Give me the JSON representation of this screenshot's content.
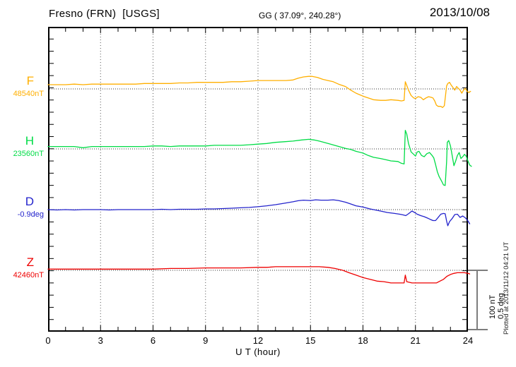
{
  "header": {
    "station_title": "Fresno (FRN)  [USGS]",
    "coordinates": "GG ( 37.09°, 240.28°)",
    "date": "2013/10/08"
  },
  "axis": {
    "x_label": "U T (hour)"
  },
  "channels": [
    {
      "letter": "F",
      "value_label": "48540nT",
      "color": "#FFAF00"
    },
    {
      "letter": "H",
      "value_label": "23560nT",
      "color": "#00DC46"
    },
    {
      "letter": "D",
      "value_label": "-0.9deg",
      "color": "#2323CC"
    },
    {
      "letter": "Z",
      "value_label": "42460nT",
      "color": "#EE0000"
    }
  ],
  "scale_bar": {
    "label_nT": "100 nT",
    "label_deg": "0.5 deg"
  },
  "footer_note": "Plotted at 2013/11/12 04:21 UT",
  "chart_data": {
    "type": "line",
    "title": "Fresno (FRN) [USGS] magnetogram 2013/10/08",
    "xlabel": "U T (hour)",
    "x_range": [
      0,
      24
    ],
    "x_ticks": [
      0,
      3,
      6,
      9,
      12,
      15,
      18,
      21,
      24
    ],
    "grid": "dotted vertical every 3 h, dotted horizontal baseline per channel",
    "scale_reference": {
      "nT_per_bar": 100,
      "deg_per_bar": 0.5
    },
    "series": [
      {
        "name": "F",
        "baseline_value": 48540,
        "unit": "nT",
        "color": "#FFAF00",
        "points": [
          [
            0,
            7
          ],
          [
            0.5,
            7
          ],
          [
            1,
            7
          ],
          [
            1.5,
            8
          ],
          [
            2,
            7
          ],
          [
            2.5,
            8
          ],
          [
            3,
            8
          ],
          [
            3.5,
            8
          ],
          [
            4,
            8
          ],
          [
            4.5,
            8
          ],
          [
            5,
            8
          ],
          [
            5.5,
            9
          ],
          [
            6,
            9
          ],
          [
            6.5,
            9
          ],
          [
            7,
            9
          ],
          [
            7.5,
            10
          ],
          [
            8,
            10
          ],
          [
            8.5,
            11
          ],
          [
            9,
            11
          ],
          [
            9.5,
            11
          ],
          [
            10,
            11
          ],
          [
            10.5,
            12
          ],
          [
            11,
            12
          ],
          [
            11.5,
            13
          ],
          [
            12,
            14
          ],
          [
            12.4,
            14
          ],
          [
            12.8,
            14
          ],
          [
            13.2,
            14
          ],
          [
            13.6,
            14
          ],
          [
            14,
            15
          ],
          [
            14.3,
            18
          ],
          [
            14.6,
            20
          ],
          [
            14.9,
            21
          ],
          [
            15.1,
            21
          ],
          [
            15.4,
            19
          ],
          [
            15.7,
            16
          ],
          [
            16,
            14
          ],
          [
            16.3,
            12
          ],
          [
            16.6,
            8
          ],
          [
            17,
            4
          ],
          [
            17.3,
            -2
          ],
          [
            17.6,
            -7
          ],
          [
            18,
            -12
          ],
          [
            18.3,
            -15
          ],
          [
            18.6,
            -18
          ],
          [
            19,
            -19
          ],
          [
            19.3,
            -19
          ],
          [
            19.6,
            -18
          ],
          [
            20,
            -19
          ],
          [
            20.2,
            -20
          ],
          [
            20.35,
            -19
          ],
          [
            20.42,
            12
          ],
          [
            20.5,
            6
          ],
          [
            20.6,
            -2
          ],
          [
            20.75,
            -11
          ],
          [
            20.9,
            -15
          ],
          [
            21,
            -16
          ],
          [
            21.15,
            -13
          ],
          [
            21.3,
            -14
          ],
          [
            21.45,
            -18
          ],
          [
            21.6,
            -15
          ],
          [
            21.75,
            -13
          ],
          [
            21.9,
            -14
          ],
          [
            22,
            -15
          ],
          [
            22.1,
            -20
          ],
          [
            22.2,
            -27
          ],
          [
            22.3,
            -29
          ],
          [
            22.45,
            -29
          ],
          [
            22.55,
            -31
          ],
          [
            22.65,
            -28
          ],
          [
            22.72,
            -11
          ],
          [
            22.78,
            5
          ],
          [
            22.85,
            9
          ],
          [
            22.95,
            11
          ],
          [
            23.05,
            6
          ],
          [
            23.15,
            2
          ],
          [
            23.25,
            -2
          ],
          [
            23.35,
            4
          ],
          [
            23.45,
            1
          ],
          [
            23.55,
            -2
          ],
          [
            23.65,
            -7
          ],
          [
            23.75,
            -2
          ],
          [
            23.85,
            1
          ],
          [
            23.95,
            -4
          ],
          [
            24.05,
            -6
          ],
          [
            24.15,
            -4
          ]
        ]
      },
      {
        "name": "H",
        "baseline_value": 23560,
        "unit": "nT",
        "color": "#00DC46",
        "points": [
          [
            0,
            4
          ],
          [
            0.5,
            4
          ],
          [
            1,
            4
          ],
          [
            1.5,
            4
          ],
          [
            2,
            2
          ],
          [
            2.5,
            4
          ],
          [
            3,
            4
          ],
          [
            3.5,
            4
          ],
          [
            4,
            4
          ],
          [
            4.5,
            4
          ],
          [
            5,
            4
          ],
          [
            5.5,
            4
          ],
          [
            6,
            5
          ],
          [
            6.5,
            5
          ],
          [
            7,
            4
          ],
          [
            7.5,
            5
          ],
          [
            8,
            5
          ],
          [
            8.5,
            5
          ],
          [
            9,
            5
          ],
          [
            9.5,
            6
          ],
          [
            10,
            6
          ],
          [
            10.5,
            6
          ],
          [
            11,
            6
          ],
          [
            11.5,
            7
          ],
          [
            12,
            8
          ],
          [
            12.5,
            9
          ],
          [
            13,
            11
          ],
          [
            13.5,
            12
          ],
          [
            14,
            13
          ],
          [
            14.5,
            15
          ],
          [
            14.9,
            16
          ],
          [
            15.2,
            15
          ],
          [
            15.5,
            13
          ],
          [
            16,
            9
          ],
          [
            16.5,
            5
          ],
          [
            17,
            1
          ],
          [
            17.3,
            -1
          ],
          [
            17.6,
            -4
          ],
          [
            18,
            -7
          ],
          [
            18.3,
            -11
          ],
          [
            18.6,
            -14
          ],
          [
            19,
            -16
          ],
          [
            19.3,
            -18
          ],
          [
            19.6,
            -20
          ],
          [
            20,
            -21
          ],
          [
            20.2,
            -24
          ],
          [
            20.35,
            -25
          ],
          [
            20.42,
            31
          ],
          [
            20.5,
            25
          ],
          [
            20.6,
            9
          ],
          [
            20.75,
            -5
          ],
          [
            20.9,
            -9
          ],
          [
            21,
            -12
          ],
          [
            21.1,
            -5
          ],
          [
            21.2,
            -4
          ],
          [
            21.35,
            -11
          ],
          [
            21.5,
            -13
          ],
          [
            21.65,
            -8
          ],
          [
            21.8,
            -6
          ],
          [
            21.95,
            -11
          ],
          [
            22.05,
            -15
          ],
          [
            22.15,
            -26
          ],
          [
            22.25,
            -38
          ],
          [
            22.35,
            -46
          ],
          [
            22.5,
            -54
          ],
          [
            22.6,
            -60
          ],
          [
            22.7,
            -61
          ],
          [
            22.78,
            -22
          ],
          [
            22.82,
            11
          ],
          [
            22.9,
            14
          ],
          [
            23,
            5
          ],
          [
            23.1,
            -11
          ],
          [
            23.2,
            -28
          ],
          [
            23.3,
            -20
          ],
          [
            23.4,
            -11
          ],
          [
            23.5,
            -6
          ],
          [
            23.6,
            -16
          ],
          [
            23.7,
            -13
          ],
          [
            23.8,
            -9
          ],
          [
            23.9,
            -12
          ],
          [
            24,
            -20
          ],
          [
            24.1,
            -27
          ],
          [
            24.2,
            -29
          ]
        ]
      },
      {
        "name": "D",
        "baseline_value": -0.9,
        "unit": "deg",
        "color": "#2323CC",
        "points": [
          [
            0,
            0
          ],
          [
            0.5,
            -0.003
          ],
          [
            1,
            0
          ],
          [
            1.5,
            -0.003
          ],
          [
            2,
            0
          ],
          [
            2.5,
            0
          ],
          [
            3,
            0
          ],
          [
            3.5,
            -0.003
          ],
          [
            4,
            0
          ],
          [
            4.5,
            0
          ],
          [
            5,
            0
          ],
          [
            5.5,
            0
          ],
          [
            6,
            0
          ],
          [
            6.5,
            0.003
          ],
          [
            7,
            0
          ],
          [
            7.5,
            0.003
          ],
          [
            8,
            0.003
          ],
          [
            8.5,
            0.003
          ],
          [
            9,
            0.006
          ],
          [
            9.5,
            0.006
          ],
          [
            10,
            0.009
          ],
          [
            10.5,
            0.012
          ],
          [
            11,
            0.015
          ],
          [
            11.5,
            0.018
          ],
          [
            12,
            0.024
          ],
          [
            12.5,
            0.032
          ],
          [
            13,
            0.041
          ],
          [
            13.5,
            0.053
          ],
          [
            14,
            0.065
          ],
          [
            14.3,
            0.074
          ],
          [
            14.6,
            0.079
          ],
          [
            15,
            0.076
          ],
          [
            15.3,
            0.082
          ],
          [
            15.6,
            0.079
          ],
          [
            16,
            0.079
          ],
          [
            16.3,
            0.082
          ],
          [
            16.6,
            0.076
          ],
          [
            17,
            0.062
          ],
          [
            17.3,
            0.047
          ],
          [
            17.6,
            0.032
          ],
          [
            18,
            0.021
          ],
          [
            18.4,
            0.006
          ],
          [
            18.7,
            -0.003
          ],
          [
            19,
            -0.012
          ],
          [
            19.4,
            -0.024
          ],
          [
            19.8,
            -0.032
          ],
          [
            20.1,
            -0.038
          ],
          [
            20.3,
            -0.044
          ],
          [
            20.45,
            -0.05
          ],
          [
            20.6,
            -0.035
          ],
          [
            20.8,
            -0.012
          ],
          [
            20.95,
            -0.024
          ],
          [
            21.1,
            -0.038
          ],
          [
            21.3,
            -0.05
          ],
          [
            21.5,
            -0.059
          ],
          [
            21.7,
            -0.071
          ],
          [
            21.85,
            -0.082
          ],
          [
            22,
            -0.091
          ],
          [
            22.15,
            -0.091
          ],
          [
            22.3,
            -0.065
          ],
          [
            22.45,
            -0.038
          ],
          [
            22.6,
            -0.032
          ],
          [
            22.7,
            -0.035
          ],
          [
            22.78,
            -0.094
          ],
          [
            22.85,
            -0.135
          ],
          [
            22.95,
            -0.1
          ],
          [
            23.1,
            -0.074
          ],
          [
            23.25,
            -0.041
          ],
          [
            23.4,
            -0.038
          ],
          [
            23.55,
            -0.065
          ],
          [
            23.7,
            -0.053
          ],
          [
            23.85,
            -0.068
          ],
          [
            24,
            -0.094
          ],
          [
            24.1,
            -0.118
          ]
        ]
      },
      {
        "name": "Z",
        "baseline_value": 42460,
        "unit": "nT",
        "color": "#EE0000",
        "points": [
          [
            0,
            2
          ],
          [
            1,
            2
          ],
          [
            2,
            2
          ],
          [
            3,
            2
          ],
          [
            4,
            2
          ],
          [
            5,
            2
          ],
          [
            6,
            2
          ],
          [
            7,
            3
          ],
          [
            8,
            3
          ],
          [
            9,
            4
          ],
          [
            10,
            4
          ],
          [
            11,
            4
          ],
          [
            12,
            5
          ],
          [
            12.5,
            5
          ],
          [
            13,
            6
          ],
          [
            13.5,
            6
          ],
          [
            14,
            6
          ],
          [
            14.5,
            6
          ],
          [
            15,
            6
          ],
          [
            15.5,
            6
          ],
          [
            16,
            5
          ],
          [
            16.4,
            3
          ],
          [
            16.85,
            0
          ],
          [
            17.2,
            -4
          ],
          [
            17.6,
            -8
          ],
          [
            18,
            -12
          ],
          [
            18.4,
            -15
          ],
          [
            18.8,
            -18
          ],
          [
            19.2,
            -19
          ],
          [
            19.6,
            -21
          ],
          [
            20,
            -21
          ],
          [
            20.35,
            -21
          ],
          [
            20.42,
            -8
          ],
          [
            20.5,
            -19
          ],
          [
            20.8,
            -21
          ],
          [
            21.2,
            -21
          ],
          [
            21.6,
            -21
          ],
          [
            22,
            -21
          ],
          [
            22.2,
            -21
          ],
          [
            22.4,
            -18
          ],
          [
            22.6,
            -15
          ],
          [
            22.8,
            -10
          ],
          [
            23,
            -7
          ],
          [
            23.2,
            -5
          ],
          [
            23.4,
            -4
          ],
          [
            23.6,
            -4
          ],
          [
            23.8,
            -4
          ],
          [
            24,
            -5
          ],
          [
            24.1,
            -6
          ]
        ]
      }
    ]
  }
}
